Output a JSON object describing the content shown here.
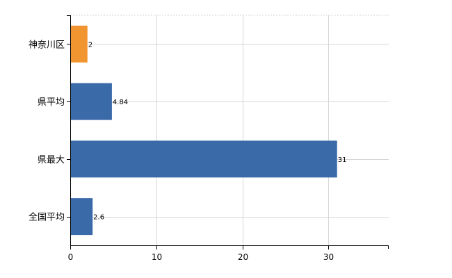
{
  "chart_data": {
    "type": "bar",
    "orientation": "horizontal",
    "categories": [
      "神奈川区",
      "県平均",
      "県最大",
      "全国平均"
    ],
    "values": [
      2,
      4.84,
      31,
      2.6
    ],
    "value_labels": [
      "2",
      "4.84",
      "31",
      "2.6"
    ],
    "colors": [
      "#f0952f",
      "#3b6aa8",
      "#3b6aa8",
      "#3b6aa8"
    ],
    "xlim": [
      0,
      37
    ],
    "x_ticks": [
      0,
      10,
      20,
      30
    ],
    "x_tick_labels": [
      "0",
      "10",
      "20",
      "30"
    ],
    "grid": true,
    "title": "",
    "xlabel": "",
    "ylabel": ""
  }
}
